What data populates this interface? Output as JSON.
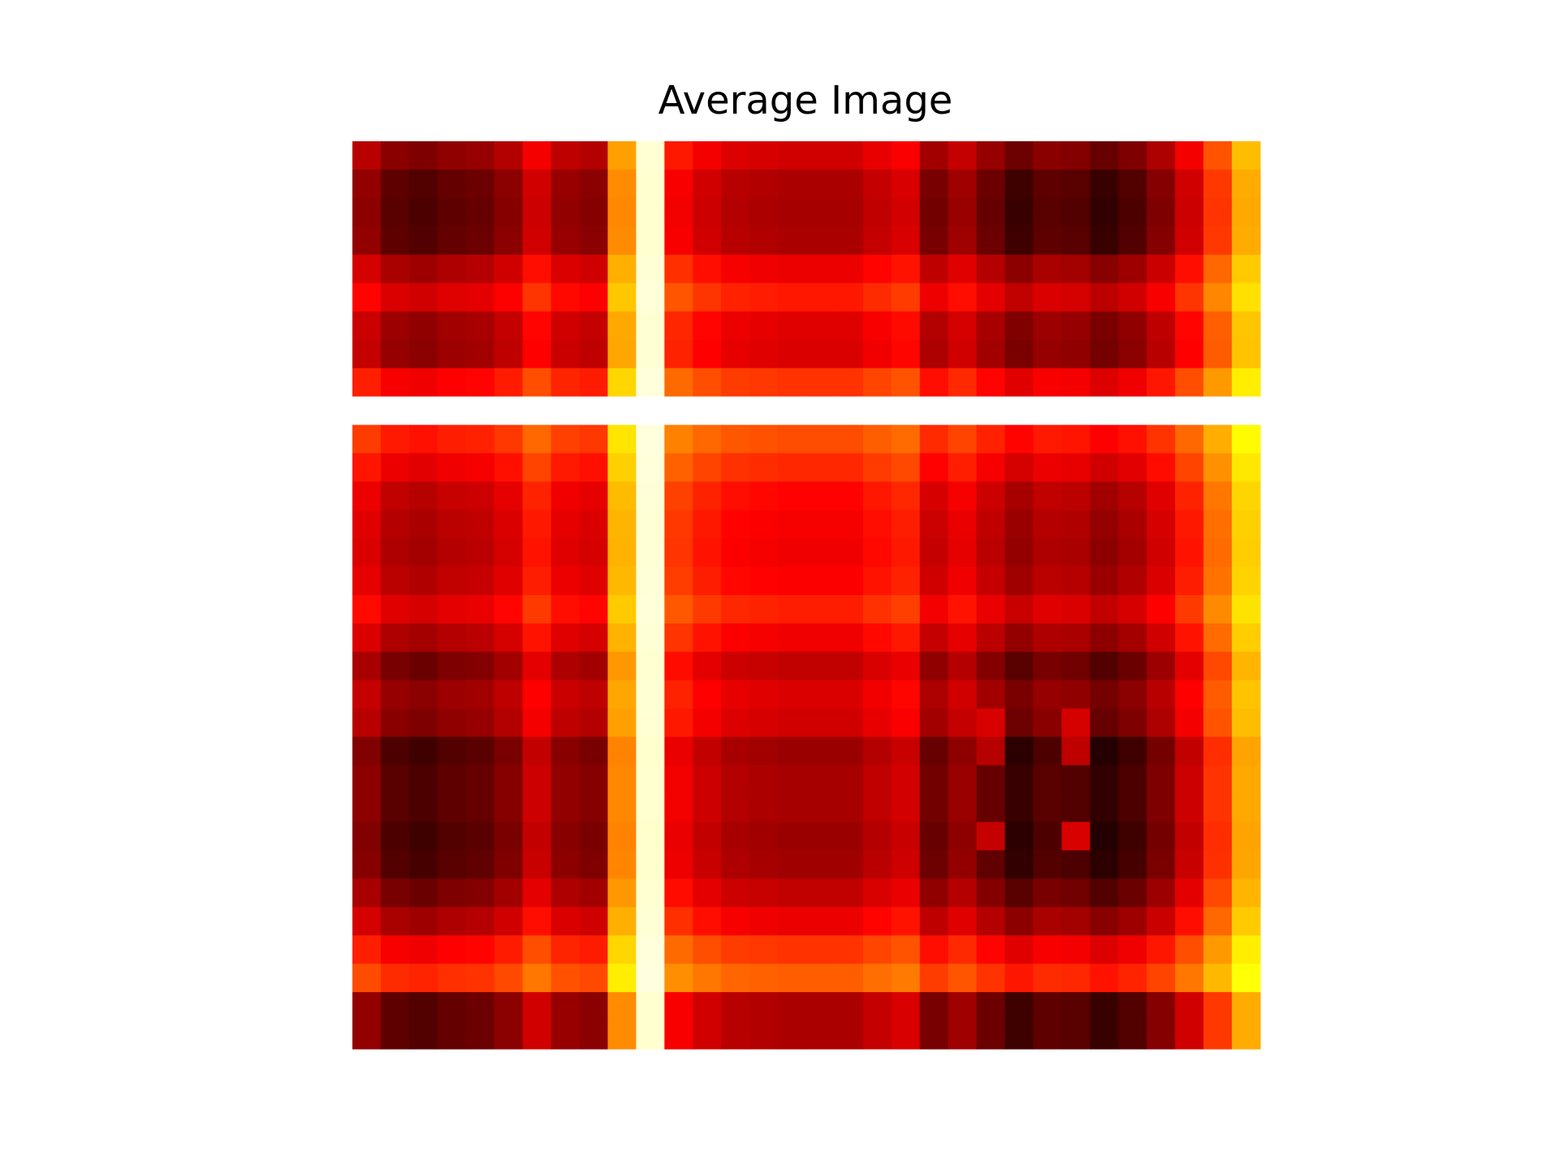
{
  "chart_data": {
    "type": "heatmap",
    "title": "Average Image",
    "xlabel": "",
    "ylabel": "",
    "colormap": "hot",
    "axes_visible": false,
    "colorbar": false,
    "grid": false,
    "rows": 32,
    "cols": 32,
    "value_range": [
      0,
      1
    ],
    "row_profile": [
      0.12,
      0.05,
      0.04,
      0.05,
      0.17,
      0.25,
      0.15,
      0.14,
      0.3,
      1.0,
      0.35,
      0.28,
      0.21,
      0.19,
      0.18,
      0.2,
      0.26,
      0.18,
      0.09,
      0.14,
      0.12,
      0.02,
      0.04,
      0.04,
      0.02,
      0.03,
      0.09,
      0.17,
      0.3,
      0.38,
      0.05,
      0.05
    ],
    "col_profile": [
      0.16,
      0.08,
      0.06,
      0.09,
      0.1,
      0.15,
      0.26,
      0.17,
      0.15,
      0.55,
      0.95,
      0.32,
      0.26,
      0.22,
      0.21,
      0.2,
      0.2,
      0.2,
      0.24,
      0.27,
      0.12,
      0.18,
      0.1,
      0.03,
      0.08,
      0.07,
      0.02,
      0.06,
      0.14,
      0.26,
      0.42,
      0.6
    ],
    "extra_cells": [
      {
        "row": 21,
        "col": 22,
        "value": 0.14
      },
      {
        "row": 21,
        "col": 25,
        "value": 0.18
      },
      {
        "row": 24,
        "col": 22,
        "value": 0.16
      },
      {
        "row": 24,
        "col": 25,
        "value": 0.22
      },
      {
        "row": 20,
        "col": 22,
        "value": 0.1
      },
      {
        "row": 20,
        "col": 25,
        "value": 0.12
      }
    ]
  }
}
